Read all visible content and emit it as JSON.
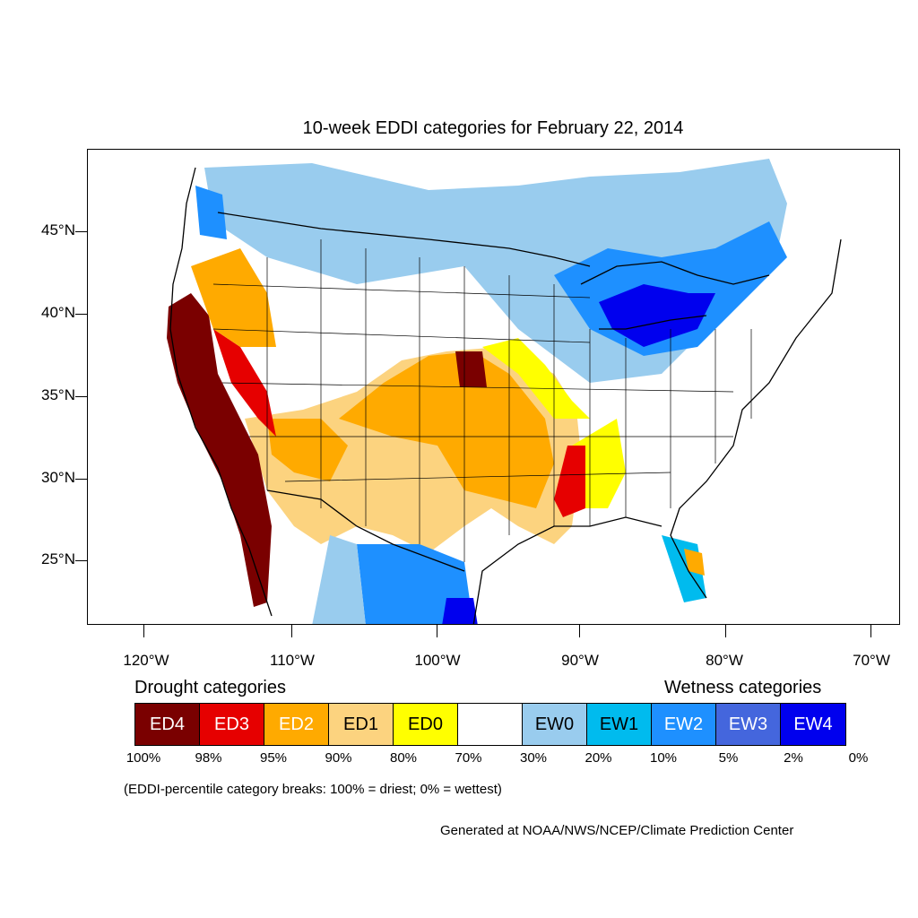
{
  "title": "10-week EDDI categories for February 22, 2014",
  "y_axis": [
    "45°N",
    "40°N",
    "35°N",
    "30°N",
    "25°N"
  ],
  "x_axis": [
    "120°W",
    "110°W",
    "100°W",
    "90°W",
    "80°W",
    "70°W"
  ],
  "legend": {
    "drought_title": "Drought categories",
    "wetness_title": "Wetness categories",
    "categories": [
      {
        "label": "ED4",
        "color": "#7a0000",
        "text_color": "#ffffff"
      },
      {
        "label": "ED3",
        "color": "#e60000",
        "text_color": "#ffffff"
      },
      {
        "label": "ED2",
        "color": "#ffaa00",
        "text_color": "#ffffff"
      },
      {
        "label": "ED1",
        "color": "#fcd37f",
        "text_color": "#000000"
      },
      {
        "label": "ED0",
        "color": "#ffff00",
        "text_color": "#000000"
      },
      {
        "label": "",
        "color": "#ffffff",
        "text_color": "#000000"
      },
      {
        "label": "EW0",
        "color": "#99ccee",
        "text_color": "#000000"
      },
      {
        "label": "EW1",
        "color": "#00bbee",
        "text_color": "#000000"
      },
      {
        "label": "EW2",
        "color": "#1e90ff",
        "text_color": "#ffffff"
      },
      {
        "label": "EW3",
        "color": "#4466dd",
        "text_color": "#ffffff"
      },
      {
        "label": "EW4",
        "color": "#0000ee",
        "text_color": "#ffffff"
      }
    ],
    "breaks": [
      "100%",
      "98%",
      "95%",
      "90%",
      "80%",
      "70%",
      "30%",
      "20%",
      "10%",
      "5%",
      "2%",
      "0%"
    ]
  },
  "note": "(EDDI-percentile category breaks: 100% = driest; 0% = wettest)",
  "credit": "Generated at NOAA/NWS/NCEP/Climate Prediction Center"
}
